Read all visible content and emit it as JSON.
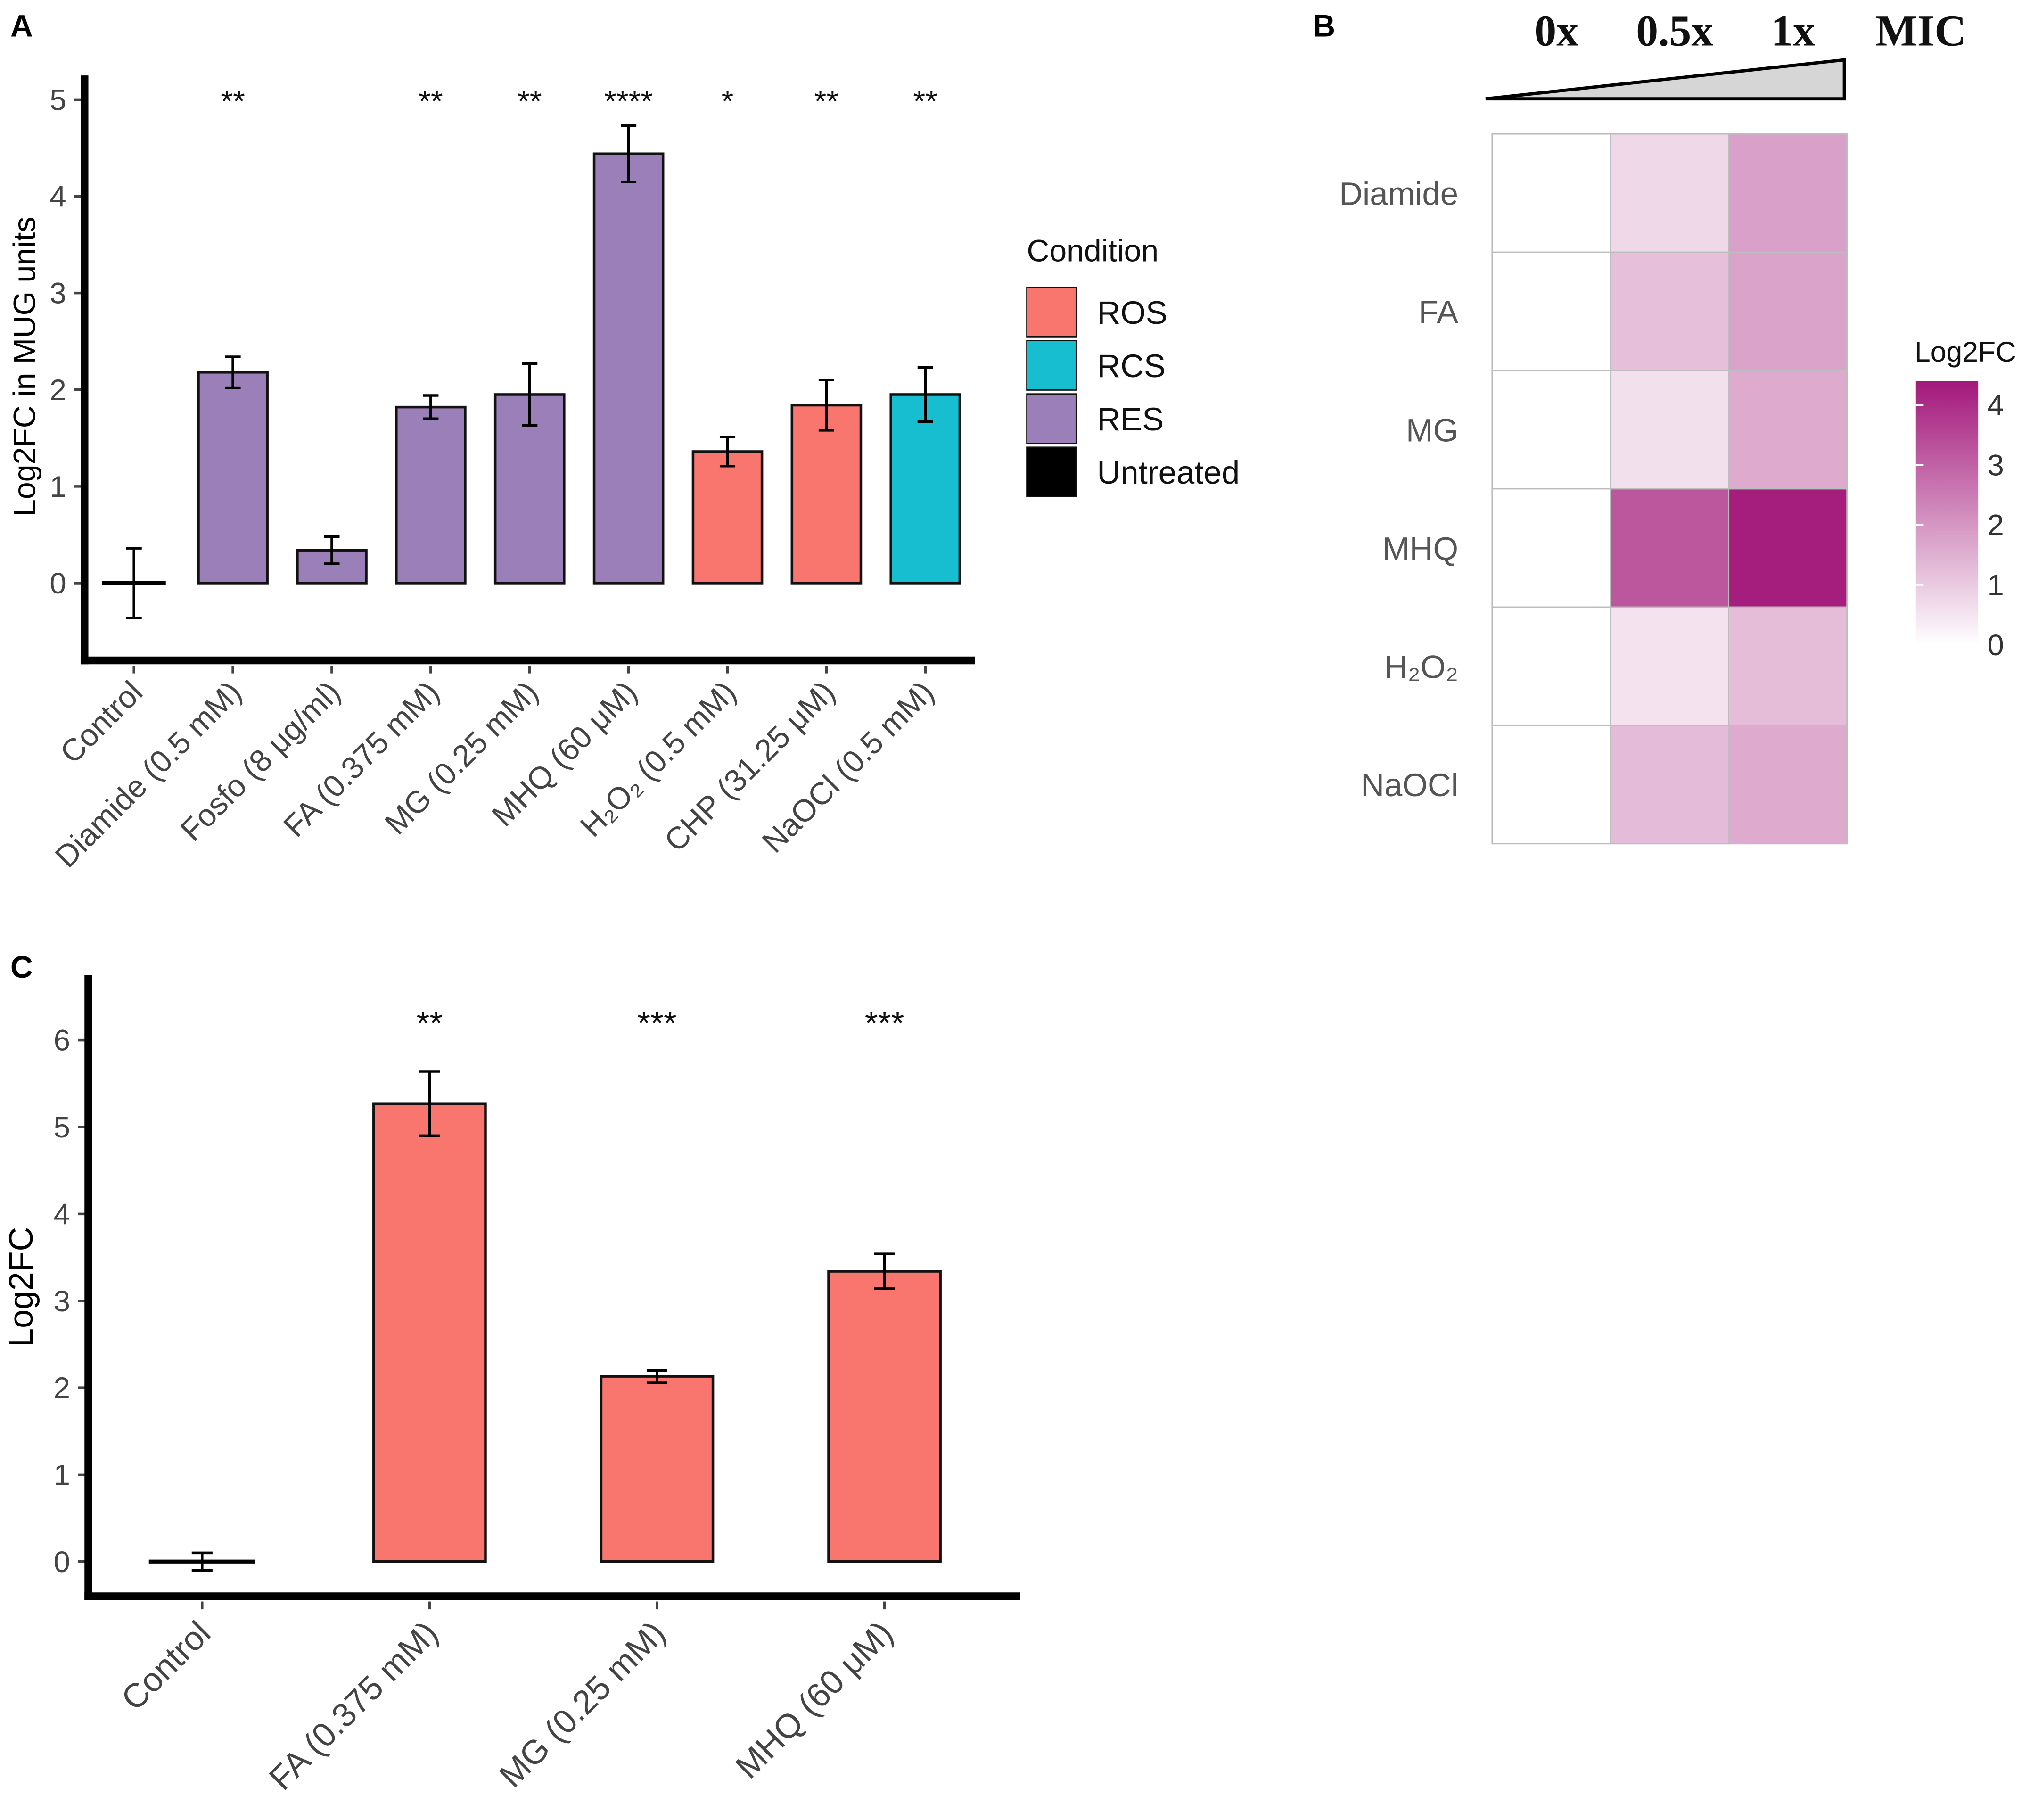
{
  "panel_labels": {
    "a": "A",
    "b": "B",
    "c": "C"
  },
  "colors": {
    "ROS": "#f8766d",
    "RCS": "#17becf",
    "RES": "#9b7fb8",
    "Untreated": "#000000",
    "heat_high": "#a3187a"
  },
  "chart_data": [
    {
      "id": "panel-a",
      "type": "bar",
      "ylabel": "Log2FC in MUG units",
      "xlabel": "",
      "ylim": [
        -0.8,
        5.25
      ],
      "yticks": [
        0,
        1,
        2,
        3,
        4,
        5
      ],
      "categories": [
        "Control",
        "Diamide (0.5 mM)",
        "Fosfo (8 μg/ml)",
        "FA (0.375 mM)",
        "MG (0.25 mM)",
        "MHQ (60 μM)",
        "H₂O₂ (0.5 mM)",
        "CHP (31.25 μM)",
        "NaOCl (0.5 mM)"
      ],
      "values": [
        0.0,
        2.18,
        0.34,
        1.82,
        1.95,
        4.44,
        1.36,
        1.84,
        1.95
      ],
      "errors": [
        0.36,
        0.16,
        0.14,
        0.12,
        0.32,
        0.29,
        0.15,
        0.26,
        0.28
      ],
      "groups": [
        "Untreated",
        "RES",
        "RES",
        "RES",
        "RES",
        "RES",
        "ROS",
        "ROS",
        "RCS"
      ],
      "significance": [
        "",
        "**",
        "",
        "**",
        "**",
        "****",
        "*",
        "**",
        "**"
      ],
      "legend": {
        "title": "Condition",
        "entries": [
          "ROS",
          "RCS",
          "RES",
          "Untreated"
        ],
        "position": "right"
      }
    },
    {
      "id": "panel-b",
      "type": "heatmap",
      "columns": [
        "0x",
        "0.5x",
        "1x"
      ],
      "column_axis_label": "MIC",
      "rows": [
        "Diamide",
        "FA",
        "MG",
        "MHQ",
        "H₂O₂",
        "NaOCl"
      ],
      "values": [
        [
          0.0,
          0.75,
          1.8
        ],
        [
          0.0,
          1.2,
          1.75
        ],
        [
          0.0,
          0.6,
          1.6
        ],
        [
          0.0,
          3.2,
          4.3
        ],
        [
          0.0,
          0.55,
          1.25
        ],
        [
          0.0,
          1.3,
          1.6
        ]
      ],
      "colorbar": {
        "title": "Log2FC",
        "range": [
          0,
          4.4
        ],
        "ticks": [
          0,
          1,
          2,
          3,
          4
        ]
      }
    },
    {
      "id": "panel-c",
      "type": "bar",
      "ylabel": "Log2FC",
      "xlabel": "",
      "ylim": [
        -0.4,
        6.75
      ],
      "yticks": [
        0,
        1,
        2,
        3,
        4,
        5,
        6
      ],
      "categories": [
        "Control",
        "FA (0.375 mM)",
        "MG (0.25 mM)",
        "MHQ (60 μM)"
      ],
      "values": [
        0.0,
        5.27,
        2.13,
        3.34
      ],
      "errors": [
        0.1,
        0.37,
        0.07,
        0.2
      ],
      "groups": [
        "Untreated",
        "ROS",
        "ROS",
        "ROS"
      ],
      "significance": [
        "",
        "**",
        "***",
        "***"
      ]
    }
  ]
}
